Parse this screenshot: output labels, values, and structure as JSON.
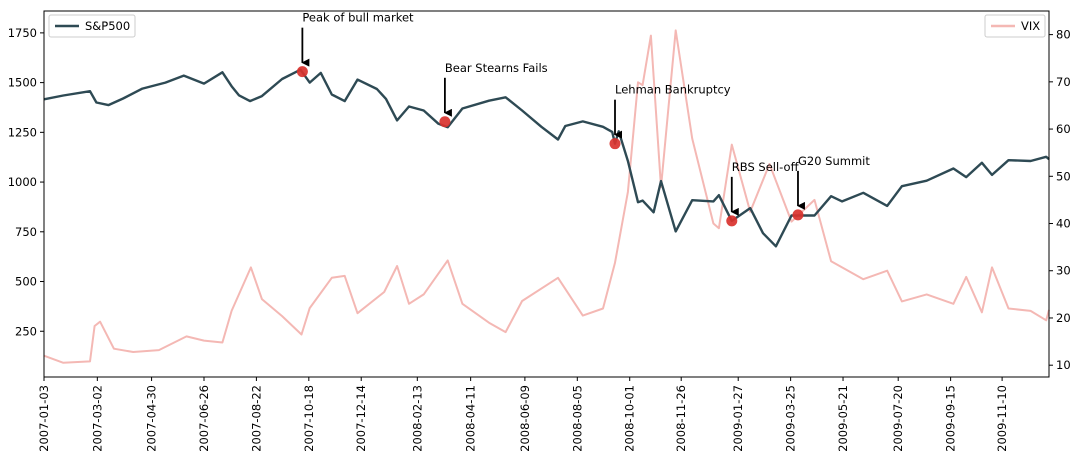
{
  "chart_data": {
    "type": "line",
    "title": "",
    "xlabel": "",
    "ylabel": "",
    "ylabel_right": "",
    "x_range": [
      "2007-01-03",
      "2009-12-31"
    ],
    "ylim": [
      20,
      1860
    ],
    "ylim_right": [
      7.5,
      85
    ],
    "x_ticks": [
      "2007-01-03",
      "2007-03-02",
      "2007-04-30",
      "2007-06-26",
      "2007-08-22",
      "2007-10-18",
      "2007-12-14",
      "2008-02-13",
      "2008-04-11",
      "2008-06-09",
      "2008-08-05",
      "2008-10-01",
      "2008-11-26",
      "2009-01-27",
      "2009-03-25",
      "2009-05-21",
      "2009-07-20",
      "2009-09-15",
      "2009-11-10"
    ],
    "y_ticks": [
      250,
      500,
      750,
      1000,
      1250,
      1500,
      1750
    ],
    "y_ticks_right": [
      10,
      20,
      30,
      40,
      50,
      60,
      70,
      80
    ],
    "grid": false,
    "legends": [
      {
        "label": "S&P500",
        "placement": "upper-left",
        "color": "#2e4a54"
      },
      {
        "label": "VIX",
        "placement": "upper-right",
        "color": "#f4b8b4"
      }
    ],
    "series": [
      {
        "name": "S&P500",
        "axis": "left",
        "color": "#2e4a54",
        "points": [
          [
            "2007-01-03",
            1416
          ],
          [
            "2007-01-24",
            1435
          ],
          [
            "2007-02-22",
            1457
          ],
          [
            "2007-03-01",
            1400
          ],
          [
            "2007-03-14",
            1387
          ],
          [
            "2007-03-30",
            1420
          ],
          [
            "2007-04-20",
            1470
          ],
          [
            "2007-05-15",
            1500
          ],
          [
            "2007-06-04",
            1535
          ],
          [
            "2007-06-26",
            1495
          ],
          [
            "2007-07-16",
            1552
          ],
          [
            "2007-07-26",
            1482
          ],
          [
            "2007-08-03",
            1436
          ],
          [
            "2007-08-15",
            1407
          ],
          [
            "2007-08-28",
            1432
          ],
          [
            "2007-09-19",
            1518
          ],
          [
            "2007-10-09",
            1565
          ],
          [
            "2007-10-19",
            1500
          ],
          [
            "2007-10-31",
            1549
          ],
          [
            "2007-11-12",
            1440
          ],
          [
            "2007-11-26",
            1407
          ],
          [
            "2007-12-10",
            1515
          ],
          [
            "2007-12-31",
            1468
          ],
          [
            "2008-01-10",
            1418
          ],
          [
            "2008-01-22",
            1310
          ],
          [
            "2008-02-04",
            1380
          ],
          [
            "2008-02-20",
            1360
          ],
          [
            "2008-03-07",
            1293
          ],
          [
            "2008-03-17",
            1276
          ],
          [
            "2008-04-02",
            1370
          ],
          [
            "2008-05-01",
            1409
          ],
          [
            "2008-05-19",
            1426
          ],
          [
            "2008-06-06",
            1360
          ],
          [
            "2008-06-27",
            1278
          ],
          [
            "2008-07-15",
            1214
          ],
          [
            "2008-07-23",
            1282
          ],
          [
            "2008-08-11",
            1305
          ],
          [
            "2008-09-02",
            1278
          ],
          [
            "2008-09-12",
            1252
          ],
          [
            "2008-09-15",
            1193
          ],
          [
            "2008-09-19",
            1255
          ],
          [
            "2008-09-29",
            1106
          ],
          [
            "2008-10-10",
            899
          ],
          [
            "2008-10-15",
            907
          ],
          [
            "2008-10-27",
            848
          ],
          [
            "2008-11-04",
            1005
          ],
          [
            "2008-11-20",
            752
          ],
          [
            "2008-12-08",
            909
          ],
          [
            "2008-12-31",
            903
          ],
          [
            "2009-01-06",
            934
          ],
          [
            "2009-01-20",
            805
          ],
          [
            "2009-02-09",
            869
          ],
          [
            "2009-02-23",
            743
          ],
          [
            "2009-03-09",
            677
          ],
          [
            "2009-03-26",
            832
          ],
          [
            "2009-04-20",
            832
          ],
          [
            "2009-05-08",
            929
          ],
          [
            "2009-05-20",
            903
          ],
          [
            "2009-06-12",
            946
          ],
          [
            "2009-07-08",
            880
          ],
          [
            "2009-07-24",
            979
          ],
          [
            "2009-08-20",
            1007
          ],
          [
            "2009-09-18",
            1068
          ],
          [
            "2009-10-02",
            1025
          ],
          [
            "2009-10-19",
            1097
          ],
          [
            "2009-10-30",
            1036
          ],
          [
            "2009-11-17",
            1110
          ],
          [
            "2009-12-11",
            1106
          ],
          [
            "2009-12-28",
            1127
          ],
          [
            "2009-12-31",
            1115
          ]
        ]
      },
      {
        "name": "VIX",
        "axis": "right",
        "color": "#f4b8b4",
        "points": [
          [
            "2007-01-03",
            12.0
          ],
          [
            "2007-01-24",
            10.5
          ],
          [
            "2007-02-22",
            10.8
          ],
          [
            "2007-02-27",
            18.3
          ],
          [
            "2007-03-05",
            19.2
          ],
          [
            "2007-03-20",
            13.5
          ],
          [
            "2007-04-10",
            12.8
          ],
          [
            "2007-05-08",
            13.2
          ],
          [
            "2007-06-07",
            16.1
          ],
          [
            "2007-06-26",
            15.2
          ],
          [
            "2007-07-16",
            14.8
          ],
          [
            "2007-07-26",
            21.5
          ],
          [
            "2007-08-16",
            30.7
          ],
          [
            "2007-08-28",
            24.0
          ],
          [
            "2007-09-19",
            20.4
          ],
          [
            "2007-10-10",
            16.5
          ],
          [
            "2007-10-19",
            22.1
          ],
          [
            "2007-11-12",
            28.5
          ],
          [
            "2007-11-26",
            28.9
          ],
          [
            "2007-12-10",
            21.0
          ],
          [
            "2008-01-08",
            25.5
          ],
          [
            "2008-01-22",
            31.0
          ],
          [
            "2008-02-04",
            23.0
          ],
          [
            "2008-02-20",
            25.0
          ],
          [
            "2008-03-17",
            32.2
          ],
          [
            "2008-04-02",
            23.0
          ],
          [
            "2008-05-01",
            19.0
          ],
          [
            "2008-05-19",
            17.0
          ],
          [
            "2008-06-06",
            23.6
          ],
          [
            "2008-07-15",
            28.5
          ],
          [
            "2008-08-11",
            20.5
          ],
          [
            "2008-09-02",
            22.0
          ],
          [
            "2008-09-15",
            31.7
          ],
          [
            "2008-09-29",
            46.7
          ],
          [
            "2008-10-10",
            69.9
          ],
          [
            "2008-10-15",
            69.3
          ],
          [
            "2008-10-24",
            79.8
          ],
          [
            "2008-11-04",
            47.7
          ],
          [
            "2008-11-20",
            80.9
          ],
          [
            "2008-12-08",
            58.0
          ],
          [
            "2008-12-31",
            40.0
          ],
          [
            "2009-01-06",
            39.0
          ],
          [
            "2009-01-20",
            56.7
          ],
          [
            "2009-02-09",
            42.5
          ],
          [
            "2009-03-02",
            52.6
          ],
          [
            "2009-03-26",
            40.4
          ],
          [
            "2009-04-20",
            45.0
          ],
          [
            "2009-05-08",
            32.0
          ],
          [
            "2009-06-12",
            28.2
          ],
          [
            "2009-07-08",
            30.0
          ],
          [
            "2009-07-24",
            23.5
          ],
          [
            "2009-08-20",
            25.0
          ],
          [
            "2009-09-18",
            23.0
          ],
          [
            "2009-10-02",
            28.7
          ],
          [
            "2009-10-19",
            21.2
          ],
          [
            "2009-10-30",
            30.7
          ],
          [
            "2009-11-17",
            22.0
          ],
          [
            "2009-12-11",
            21.5
          ],
          [
            "2009-12-28",
            19.5
          ],
          [
            "2009-12-31",
            21.7
          ]
        ]
      }
    ],
    "annotations": [
      {
        "label": "Peak of bull market",
        "date": "2007-10-11",
        "value": 1555
      },
      {
        "label": "Bear Stearns Fails",
        "date": "2008-03-14",
        "value": 1303
      },
      {
        "label": "Lehman Bankruptcy",
        "date": "2008-09-15",
        "value": 1193
      },
      {
        "label": "RBS Sell-off",
        "date": "2009-01-20",
        "value": 805
      },
      {
        "label": "G20 Summit",
        "date": "2009-04-02",
        "value": 835
      }
    ]
  }
}
